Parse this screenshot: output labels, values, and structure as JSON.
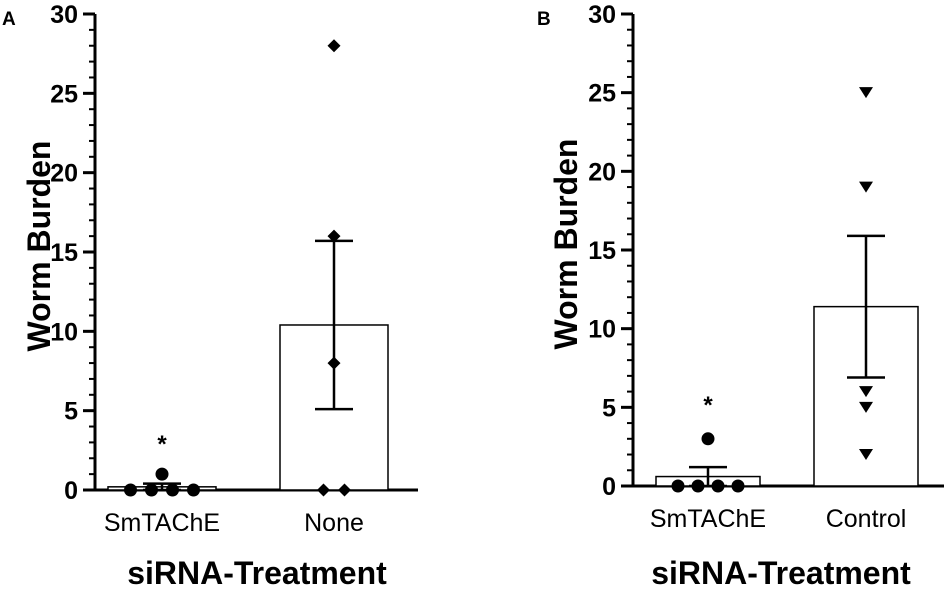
{
  "chart_data": [
    {
      "type": "bar",
      "panel_label": "A",
      "categories": [
        "SmTAChE",
        "None"
      ],
      "ylabel": "Worm Burden",
      "xlabel": "siRNA-Treatment",
      "ylim": [
        0,
        30
      ],
      "yticks": [
        "0",
        "5",
        "10",
        "15",
        "20",
        "25",
        "30"
      ],
      "bars": [
        {
          "mean": 0.2,
          "sem": 0.2,
          "marker": "circle",
          "significance": "*",
          "points": [
            0,
            0,
            0,
            0,
            1
          ]
        },
        {
          "mean": 10.4,
          "sem": 5.3,
          "marker": "diamond",
          "significance": "",
          "points": [
            0,
            0,
            8,
            16,
            28
          ]
        }
      ]
    },
    {
      "type": "bar",
      "panel_label": "B",
      "categories": [
        "SmTAChE",
        "Control"
      ],
      "ylabel": "Worm Burden",
      "xlabel": "siRNA-Treatment",
      "ylim": [
        0,
        30
      ],
      "yticks": [
        "0",
        "5",
        "10",
        "15",
        "20",
        "25",
        "30"
      ],
      "bars": [
        {
          "mean": 0.6,
          "sem": 0.6,
          "marker": "circle",
          "significance": "*",
          "points": [
            0,
            0,
            0,
            0,
            3
          ]
        },
        {
          "mean": 11.4,
          "sem": 4.5,
          "marker": "triangle-down",
          "significance": "",
          "points": [
            2,
            5,
            6,
            19,
            25
          ]
        }
      ]
    }
  ]
}
